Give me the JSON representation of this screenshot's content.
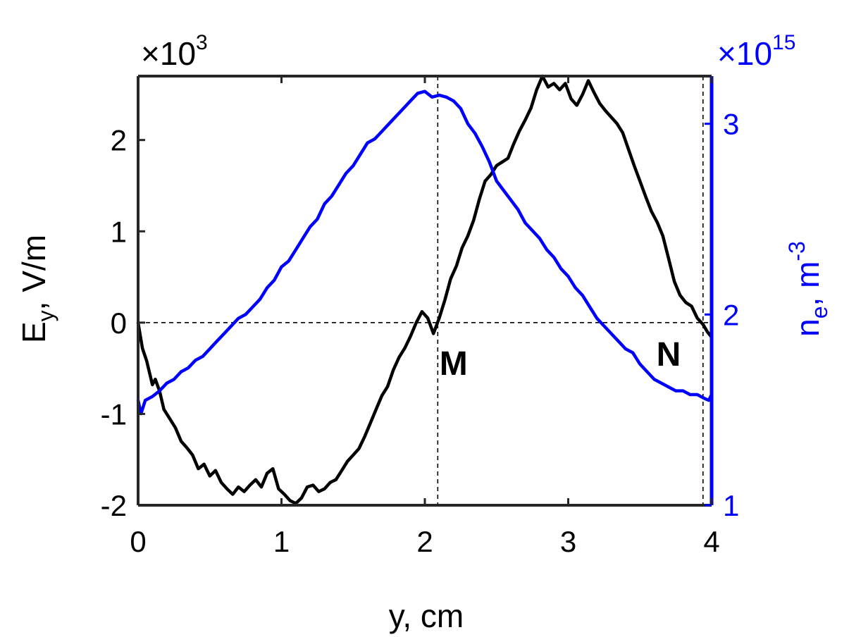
{
  "chart_data": {
    "type": "line",
    "xlabel": "y, cm",
    "ylabel_left": {
      "main": "E",
      "sub": "y",
      "rest": ", V/m"
    },
    "ylabel_right": {
      "main": "n",
      "sub": "e",
      "rest": ", m",
      "sup": "-3"
    },
    "left_exponent": {
      "prefix": "×10",
      "power": "3"
    },
    "right_exponent": {
      "prefix": "×10",
      "power": "15"
    },
    "xlim": [
      0,
      4
    ],
    "ylim_left": [
      -2,
      2.7
    ],
    "ylim_right": [
      1,
      3.25
    ],
    "x_ticks": [
      {
        "value": 0,
        "label": "0"
      },
      {
        "value": 1,
        "label": "1"
      },
      {
        "value": 2,
        "label": "2"
      },
      {
        "value": 3,
        "label": "3"
      },
      {
        "value": 4,
        "label": "4"
      }
    ],
    "y_left_ticks": [
      {
        "value": -2,
        "label": "-2"
      },
      {
        "value": -1,
        "label": "-1"
      },
      {
        "value": 0,
        "label": "0"
      },
      {
        "value": 1,
        "label": "1"
      },
      {
        "value": 2,
        "label": "2"
      }
    ],
    "y_right_ticks": [
      {
        "value": 1,
        "label": "1"
      },
      {
        "value": 2,
        "label": "2"
      },
      {
        "value": 3,
        "label": "3"
      }
    ],
    "grid": false,
    "reference_lines": {
      "y_left": 0,
      "x": [
        2.09,
        3.94
      ]
    },
    "annotations": [
      {
        "text": "M",
        "x": 2.2,
        "y": -0.45
      },
      {
        "text": "N",
        "x": 3.7,
        "y": -0.35
      }
    ],
    "series": [
      {
        "axis": "left",
        "color": "#000000",
        "x": [
          0.0,
          0.03,
          0.06,
          0.1,
          0.12,
          0.15,
          0.18,
          0.22,
          0.26,
          0.3,
          0.34,
          0.38,
          0.42,
          0.46,
          0.5,
          0.54,
          0.58,
          0.62,
          0.66,
          0.7,
          0.74,
          0.78,
          0.82,
          0.86,
          0.9,
          0.94,
          0.98,
          1.02,
          1.06,
          1.1,
          1.14,
          1.18,
          1.22,
          1.26,
          1.3,
          1.34,
          1.38,
          1.42,
          1.46,
          1.5,
          1.54,
          1.58,
          1.62,
          1.66,
          1.7,
          1.74,
          1.78,
          1.82,
          1.86,
          1.9,
          1.94,
          1.98,
          2.02,
          2.06,
          2.1,
          2.14,
          2.18,
          2.22,
          2.26,
          2.3,
          2.34,
          2.38,
          2.42,
          2.46,
          2.5,
          2.54,
          2.58,
          2.62,
          2.66,
          2.7,
          2.74,
          2.78,
          2.82,
          2.86,
          2.9,
          2.94,
          2.98,
          3.02,
          3.06,
          3.1,
          3.14,
          3.18,
          3.22,
          3.26,
          3.3,
          3.34,
          3.38,
          3.42,
          3.46,
          3.5,
          3.54,
          3.58,
          3.62,
          3.66,
          3.7,
          3.74,
          3.78,
          3.82,
          3.86,
          3.9,
          3.94,
          3.97,
          4.0
        ],
        "y": [
          0.0,
          -0.28,
          -0.42,
          -0.68,
          -0.62,
          -0.75,
          -0.95,
          -1.05,
          -1.15,
          -1.3,
          -1.37,
          -1.45,
          -1.6,
          -1.55,
          -1.68,
          -1.62,
          -1.75,
          -1.82,
          -1.88,
          -1.8,
          -1.85,
          -1.78,
          -1.72,
          -1.8,
          -1.65,
          -1.6,
          -1.82,
          -1.88,
          -1.95,
          -1.98,
          -1.92,
          -1.8,
          -1.78,
          -1.85,
          -1.82,
          -1.75,
          -1.72,
          -1.62,
          -1.52,
          -1.45,
          -1.38,
          -1.25,
          -1.1,
          -0.95,
          -0.8,
          -0.7,
          -0.52,
          -0.38,
          -0.28,
          -0.15,
          0.0,
          0.12,
          0.05,
          -0.12,
          0.05,
          0.25,
          0.48,
          0.62,
          0.82,
          0.95,
          1.12,
          1.35,
          1.55,
          1.62,
          1.72,
          1.76,
          1.8,
          1.96,
          2.1,
          2.22,
          2.35,
          2.55,
          2.7,
          2.58,
          2.62,
          2.55,
          2.62,
          2.45,
          2.38,
          2.5,
          2.65,
          2.52,
          2.4,
          2.32,
          2.25,
          2.18,
          2.08,
          1.9,
          1.72,
          1.55,
          1.38,
          1.22,
          1.1,
          0.95,
          0.7,
          0.45,
          0.3,
          0.22,
          0.18,
          0.05,
          -0.02,
          -0.1,
          -0.16
        ]
      },
      {
        "axis": "right",
        "color": "#0000ff",
        "x": [
          0.0,
          0.02,
          0.05,
          0.1,
          0.15,
          0.2,
          0.25,
          0.3,
          0.35,
          0.4,
          0.45,
          0.5,
          0.55,
          0.6,
          0.65,
          0.7,
          0.75,
          0.8,
          0.85,
          0.9,
          0.95,
          1.0,
          1.05,
          1.1,
          1.15,
          1.2,
          1.25,
          1.3,
          1.35,
          1.4,
          1.45,
          1.5,
          1.55,
          1.6,
          1.65,
          1.7,
          1.75,
          1.8,
          1.85,
          1.9,
          1.95,
          2.0,
          2.05,
          2.1,
          2.15,
          2.2,
          2.25,
          2.3,
          2.35,
          2.4,
          2.45,
          2.5,
          2.55,
          2.6,
          2.65,
          2.7,
          2.75,
          2.8,
          2.85,
          2.9,
          2.95,
          3.0,
          3.05,
          3.1,
          3.15,
          3.2,
          3.25,
          3.3,
          3.35,
          3.4,
          3.45,
          3.5,
          3.55,
          3.6,
          3.65,
          3.7,
          3.75,
          3.8,
          3.85,
          3.9,
          3.95,
          3.98,
          4.0
        ],
        "y": [
          1.55,
          1.48,
          1.55,
          1.57,
          1.6,
          1.64,
          1.66,
          1.7,
          1.72,
          1.76,
          1.78,
          1.82,
          1.86,
          1.9,
          1.94,
          1.98,
          2.0,
          2.04,
          2.08,
          2.14,
          2.18,
          2.25,
          2.28,
          2.34,
          2.4,
          2.46,
          2.5,
          2.58,
          2.62,
          2.68,
          2.74,
          2.78,
          2.84,
          2.9,
          2.92,
          2.96,
          3.0,
          3.04,
          3.08,
          3.12,
          3.16,
          3.17,
          3.14,
          3.15,
          3.14,
          3.12,
          3.08,
          3.0,
          2.95,
          2.88,
          2.8,
          2.7,
          2.65,
          2.6,
          2.55,
          2.48,
          2.44,
          2.4,
          2.34,
          2.3,
          2.24,
          2.2,
          2.14,
          2.1,
          2.04,
          1.98,
          1.94,
          1.9,
          1.86,
          1.82,
          1.8,
          1.74,
          1.7,
          1.66,
          1.64,
          1.62,
          1.6,
          1.6,
          1.58,
          1.58,
          1.56,
          1.55,
          1.58
        ]
      }
    ]
  }
}
